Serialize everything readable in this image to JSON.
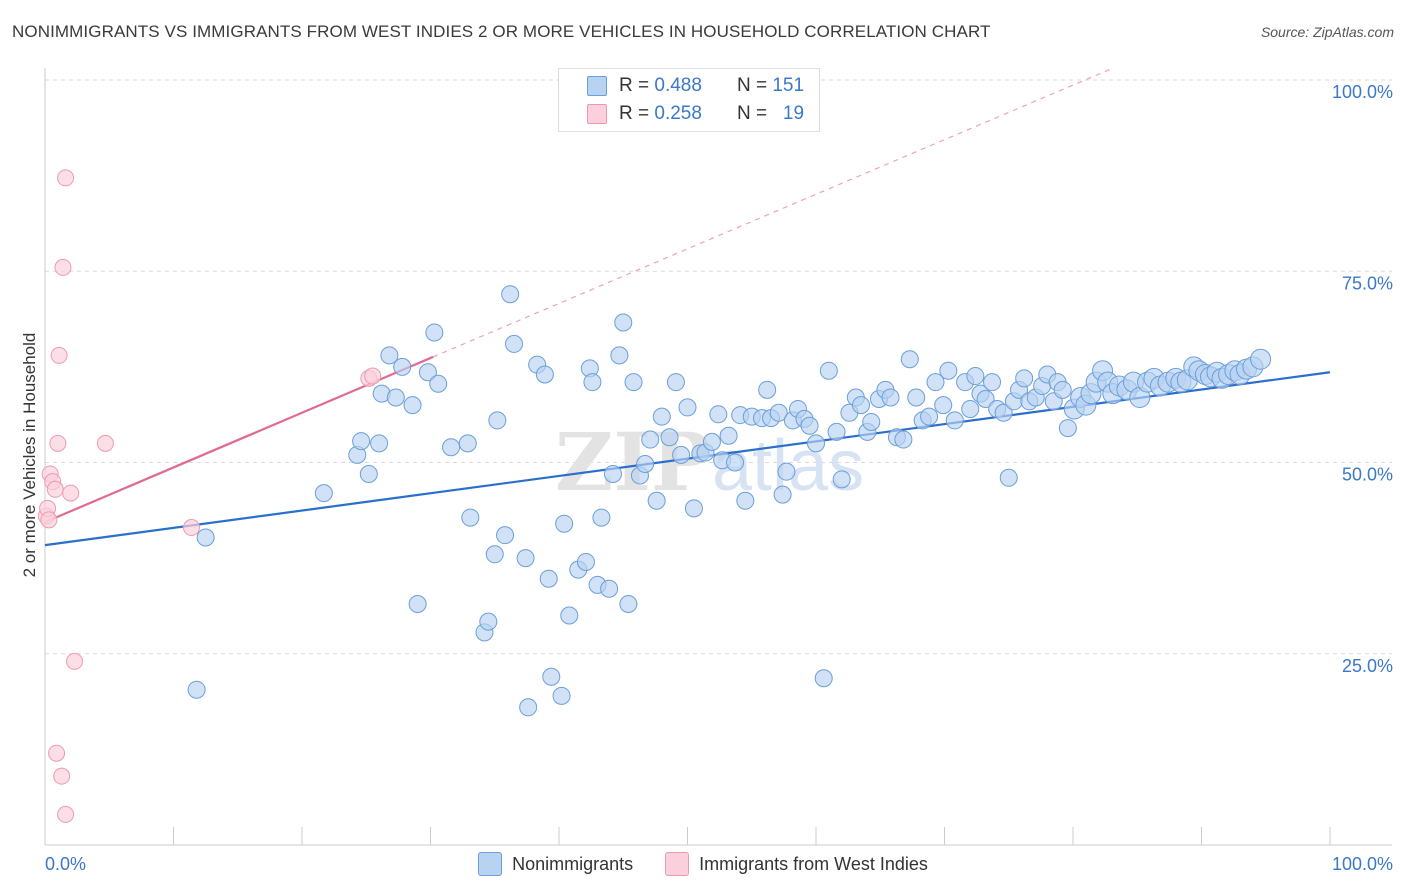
{
  "header": {
    "title": "NONIMMIGRANTS VS IMMIGRANTS FROM WEST INDIES 2 OR MORE VEHICLES IN HOUSEHOLD CORRELATION CHART",
    "source": "Source: ZipAtlas.com"
  },
  "legend_box": {
    "r_label": "R =",
    "n_label": "N =",
    "rows": [
      {
        "r": "0.488",
        "n": "151"
      },
      {
        "r": "0.258",
        "n": "19"
      }
    ]
  },
  "watermark": {
    "zip": "ZIP",
    "atlas": "atlas"
  },
  "colors": {
    "blue_fill": "#b8d2f2",
    "blue_stroke": "#6b9fd8",
    "blue_line": "#2a6fcc",
    "pink_fill": "#fbd0dc",
    "pink_stroke": "#ec9ab2",
    "pink_line": "#e06b92",
    "tick_text": "#3a78c8",
    "grid": "#d9d9d9"
  },
  "chart_data": {
    "type": "scatter",
    "title": "NONIMMIGRANTS VS IMMIGRANTS FROM WEST INDIES 2 OR MORE VEHICLES IN HOUSEHOLD CORRELATION CHART",
    "xlabel": "",
    "ylabel": "2 or more Vehicles in Household",
    "xlim": [
      0,
      100
    ],
    "ylim": [
      0,
      102
    ],
    "x_tick_labels": [
      "0.0%",
      "100.0%"
    ],
    "y_ticks": [
      25,
      50,
      75,
      100
    ],
    "y_tick_labels": [
      "25.0%",
      "50.0%",
      "75.0%",
      "100.0%"
    ],
    "grid": "horizontal dashed",
    "legend_position": "top-center and bottom",
    "series": [
      {
        "name": "Nonimmigrants",
        "color": "#b8d2f2",
        "r": 0.488,
        "n": 151,
        "trend": {
          "x": [
            0,
            100
          ],
          "y": [
            39.2,
            61.8
          ],
          "style": "solid"
        },
        "points": [
          [
            11.8,
            20.3
          ],
          [
            12.5,
            40.2
          ],
          [
            21.7,
            46.0
          ],
          [
            24.3,
            51.0
          ],
          [
            24.6,
            52.8
          ],
          [
            25.2,
            48.5
          ],
          [
            26.0,
            52.5
          ],
          [
            26.2,
            59.0
          ],
          [
            26.8,
            64.0
          ],
          [
            27.3,
            58.5
          ],
          [
            27.8,
            62.5
          ],
          [
            28.6,
            57.5
          ],
          [
            29.0,
            31.5
          ],
          [
            29.8,
            61.8
          ],
          [
            30.3,
            67.0
          ],
          [
            30.6,
            60.3
          ],
          [
            31.6,
            52.0
          ],
          [
            32.9,
            52.5
          ],
          [
            33.1,
            42.8
          ],
          [
            34.2,
            27.8
          ],
          [
            34.5,
            29.2
          ],
          [
            35.0,
            38.0
          ],
          [
            35.2,
            55.5
          ],
          [
            35.8,
            40.5
          ],
          [
            36.2,
            72.0
          ],
          [
            36.5,
            65.5
          ],
          [
            37.4,
            37.5
          ],
          [
            37.6,
            18.0
          ],
          [
            38.3,
            62.8
          ],
          [
            38.9,
            61.5
          ],
          [
            39.2,
            34.8
          ],
          [
            39.4,
            22.0
          ],
          [
            40.2,
            19.5
          ],
          [
            40.4,
            42.0
          ],
          [
            40.8,
            30.0
          ],
          [
            41.5,
            36.0
          ],
          [
            42.1,
            37.0
          ],
          [
            42.4,
            62.3
          ],
          [
            42.6,
            60.5
          ],
          [
            43.0,
            34.0
          ],
          [
            43.3,
            42.8
          ],
          [
            43.9,
            33.5
          ],
          [
            44.2,
            48.5
          ],
          [
            44.7,
            64.0
          ],
          [
            45.0,
            68.3
          ],
          [
            45.4,
            31.5
          ],
          [
            45.8,
            60.5
          ],
          [
            46.3,
            48.3
          ],
          [
            46.7,
            49.8
          ],
          [
            47.1,
            53.0
          ],
          [
            47.6,
            45.0
          ],
          [
            48.0,
            56.0
          ],
          [
            48.6,
            53.3
          ],
          [
            49.1,
            60.5
          ],
          [
            49.5,
            51.0
          ],
          [
            50.0,
            57.2
          ],
          [
            50.5,
            44.0
          ],
          [
            51.0,
            51.2
          ],
          [
            51.4,
            51.3
          ],
          [
            51.9,
            52.7
          ],
          [
            52.4,
            56.3
          ],
          [
            52.7,
            50.3
          ],
          [
            53.2,
            53.5
          ],
          [
            53.7,
            50.0
          ],
          [
            54.1,
            56.2
          ],
          [
            54.5,
            45.0
          ],
          [
            55.0,
            56.0
          ],
          [
            55.8,
            55.8
          ],
          [
            56.2,
            59.5
          ],
          [
            56.5,
            55.8
          ],
          [
            57.1,
            56.5
          ],
          [
            57.4,
            45.8
          ],
          [
            57.7,
            48.8
          ],
          [
            58.2,
            55.5
          ],
          [
            58.6,
            57.0
          ],
          [
            59.1,
            55.7
          ],
          [
            59.5,
            54.8
          ],
          [
            60.0,
            52.5
          ],
          [
            60.6,
            21.8
          ],
          [
            61.0,
            62.0
          ],
          [
            61.6,
            54.0
          ],
          [
            62.0,
            47.8
          ],
          [
            62.6,
            56.5
          ],
          [
            63.1,
            58.5
          ],
          [
            63.5,
            57.5
          ],
          [
            64.0,
            54.0
          ],
          [
            64.3,
            55.3
          ],
          [
            64.9,
            58.3
          ],
          [
            65.4,
            59.5
          ],
          [
            65.8,
            58.5
          ],
          [
            66.3,
            53.3
          ],
          [
            66.8,
            53.0
          ],
          [
            67.3,
            63.5
          ],
          [
            67.8,
            58.5
          ],
          [
            68.3,
            55.5
          ],
          [
            68.8,
            56.0
          ],
          [
            69.3,
            60.5
          ],
          [
            69.9,
            57.5
          ],
          [
            70.3,
            62.0
          ],
          [
            70.8,
            55.5
          ],
          [
            71.6,
            60.5
          ],
          [
            72.0,
            57.0
          ],
          [
            72.4,
            61.3
          ],
          [
            72.8,
            59.0
          ],
          [
            73.2,
            58.3
          ],
          [
            73.7,
            60.5
          ],
          [
            74.1,
            57.0
          ],
          [
            74.6,
            56.5
          ],
          [
            75.0,
            48.0
          ],
          [
            75.4,
            58.0
          ],
          [
            75.8,
            59.5
          ],
          [
            76.2,
            61.0
          ],
          [
            76.6,
            58.0
          ],
          [
            77.1,
            58.5
          ],
          [
            77.6,
            60.0
          ],
          [
            78.0,
            61.5
          ],
          [
            78.5,
            58.0
          ],
          [
            78.8,
            60.5
          ],
          [
            79.2,
            59.5
          ],
          [
            79.6,
            54.5
          ],
          [
            80.1,
            57.0
          ],
          [
            80.6,
            58.5
          ],
          [
            81.0,
            57.5
          ],
          [
            81.4,
            59.0
          ],
          [
            81.8,
            60.5
          ],
          [
            82.3,
            62.0
          ],
          [
            82.7,
            60.5
          ],
          [
            83.1,
            59.0
          ],
          [
            83.6,
            60.0
          ],
          [
            84.2,
            59.5
          ],
          [
            84.7,
            60.5
          ],
          [
            85.2,
            58.5
          ],
          [
            85.8,
            60.5
          ],
          [
            86.3,
            61.0
          ],
          [
            86.8,
            60.0
          ],
          [
            87.4,
            60.5
          ],
          [
            88.0,
            61.0
          ],
          [
            88.4,
            60.5
          ],
          [
            88.9,
            60.8
          ],
          [
            89.4,
            62.5
          ],
          [
            89.8,
            62.0
          ],
          [
            90.3,
            61.5
          ],
          [
            90.7,
            61.2
          ],
          [
            91.2,
            61.8
          ],
          [
            91.6,
            61.0
          ],
          [
            92.1,
            61.5
          ],
          [
            92.6,
            62.0
          ],
          [
            93.0,
            61.5
          ],
          [
            93.5,
            62.2
          ],
          [
            94.0,
            62.5
          ],
          [
            94.6,
            63.5
          ]
        ]
      },
      {
        "name": "Immigrants from West Indies",
        "color": "#fbd0dc",
        "r": 0.258,
        "n": 19,
        "trend": {
          "x": [
            0,
            30.2
          ],
          "y": [
            42.2,
            63.8
          ],
          "style": "solid",
          "extended": {
            "x": [
              30.2,
              100
            ],
            "y": [
              63.8,
              113.6
            ],
            "style": "dashed"
          }
        },
        "points": [
          [
            0.1,
            43.0
          ],
          [
            0.2,
            44.0
          ],
          [
            0.3,
            42.5
          ],
          [
            0.4,
            48.5
          ],
          [
            0.6,
            47.5
          ],
          [
            0.8,
            46.5
          ],
          [
            1.0,
            52.5
          ],
          [
            1.1,
            64.0
          ],
          [
            1.4,
            75.5
          ],
          [
            1.6,
            87.2
          ],
          [
            2.0,
            46.0
          ],
          [
            2.3,
            24.0
          ],
          [
            0.9,
            12.0
          ],
          [
            1.3,
            9.0
          ],
          [
            1.6,
            4.0
          ],
          [
            4.7,
            52.5
          ],
          [
            11.4,
            41.5
          ],
          [
            25.2,
            61.0
          ],
          [
            25.5,
            61.3
          ]
        ]
      }
    ]
  }
}
